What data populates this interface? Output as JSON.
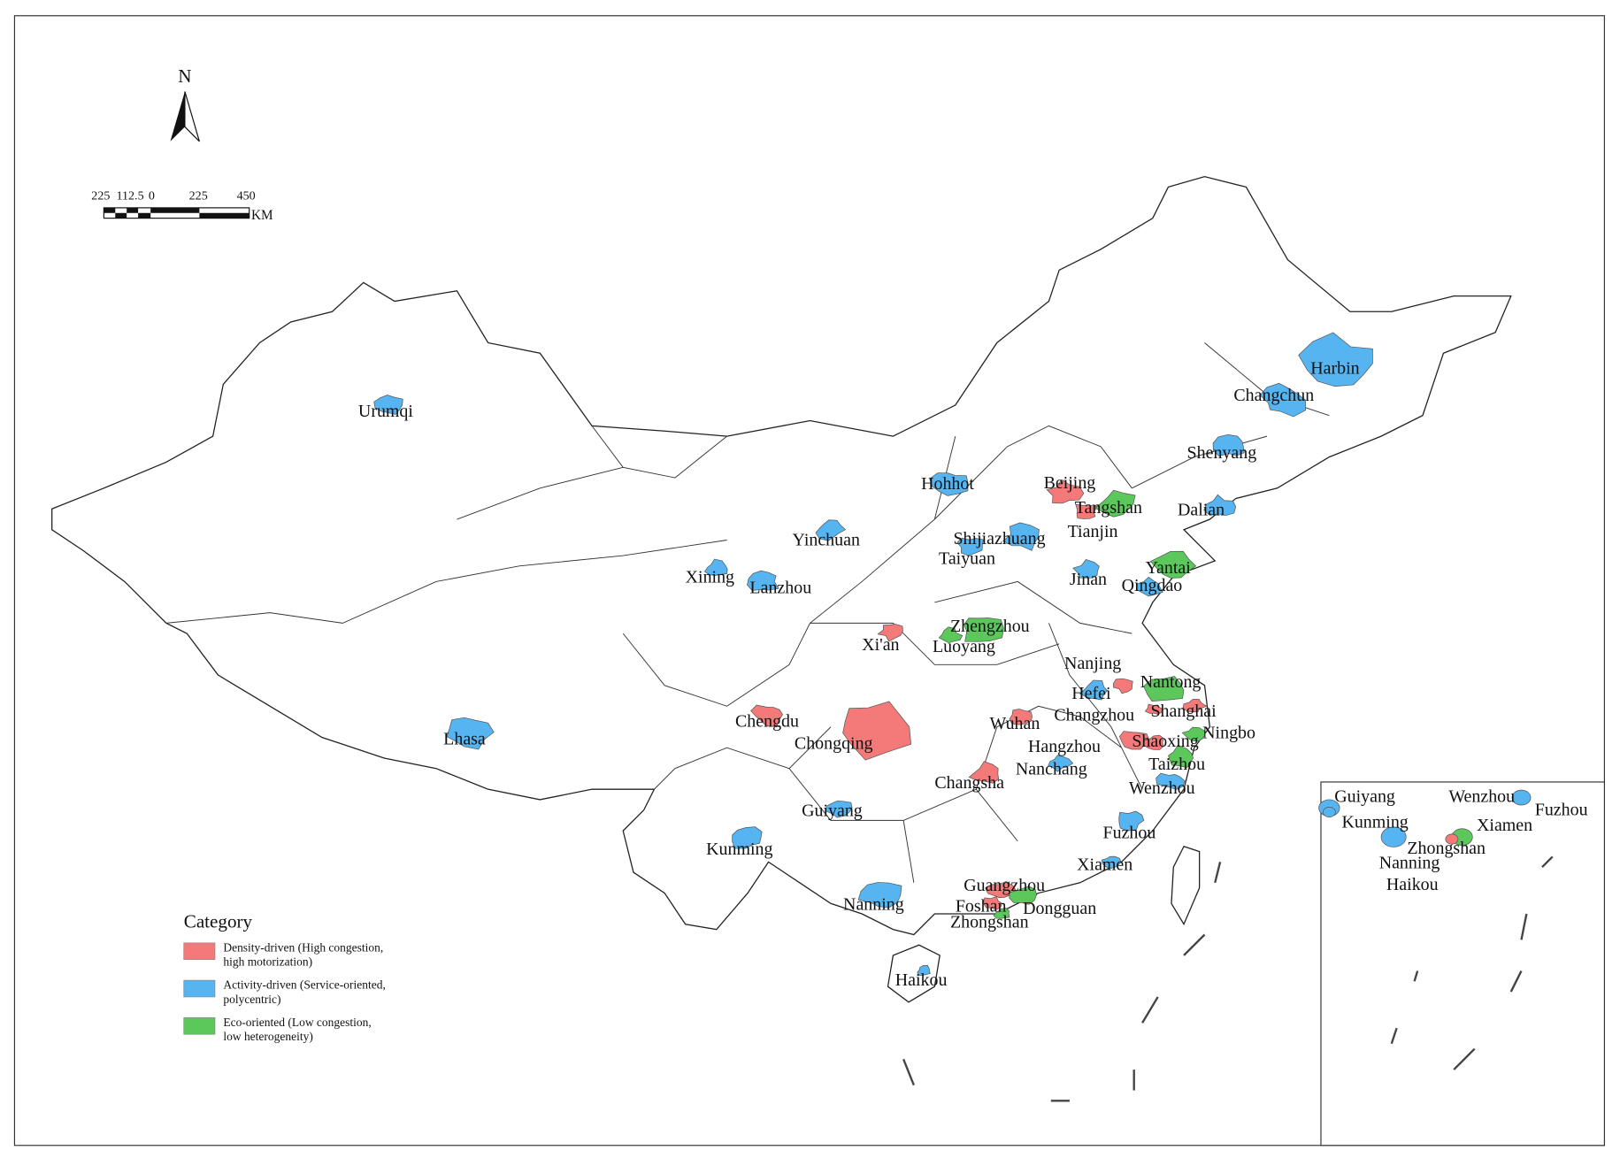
{
  "north_arrow": {
    "label": "N"
  },
  "scale_bar": {
    "ticks": [
      "225",
      "112.5",
      "0",
      "225",
      "450"
    ],
    "unit": "KM"
  },
  "legend": {
    "title": "Category",
    "items": [
      {
        "label": [
          "Density-driven (High congestion,",
          "high motorization)"
        ],
        "color": "#f47a7a",
        "cities": [
          "Beijing",
          "Tianjin",
          "Xi'an",
          "Chengdu",
          "Chongqing",
          "Wuhan",
          "Changsha",
          "Nanjing",
          "Changzhou",
          "Shanghai",
          "Hangzhou",
          "Shaoxing",
          "Guangzhou",
          "Foshan"
        ]
      },
      {
        "label": [
          "Activity-driven (Service-oriented,",
          "polycentric)"
        ],
        "color": "#56b4f0",
        "cities": [
          "Urumqi",
          "Lhasa",
          "Harbin",
          "Changchun",
          "Shenyang",
          "Dalian",
          "Hohhot",
          "Yinchuan",
          "Xining",
          "Lanzhou",
          "Shijiazhuang",
          "Taiyuan",
          "Jinan",
          "Qingdao",
          "Hefei",
          "Nanchang",
          "Guiyang",
          "Kunming",
          "Nanning",
          "Haikou",
          "Fuzhou",
          "Xiamen",
          "Wenzhou"
        ]
      },
      {
        "label": [
          "Eco-oriented (Low congestion,",
          "low heterogeneity)"
        ],
        "color": "#5cc85c",
        "cities": [
          "Tangshan",
          "Yantai",
          "Zhengzhou",
          "Luoyang",
          "Nantong",
          "Taizhou",
          "Ningbo",
          "Dongguan",
          "Zhongshan"
        ]
      }
    ]
  },
  "inset": {
    "labels": [
      "Guiyang",
      "Wenzhou",
      "Fuzhou",
      "Kunming",
      "Xiamen",
      "Zhongshan",
      "Nanning",
      "Haikou"
    ]
  }
}
